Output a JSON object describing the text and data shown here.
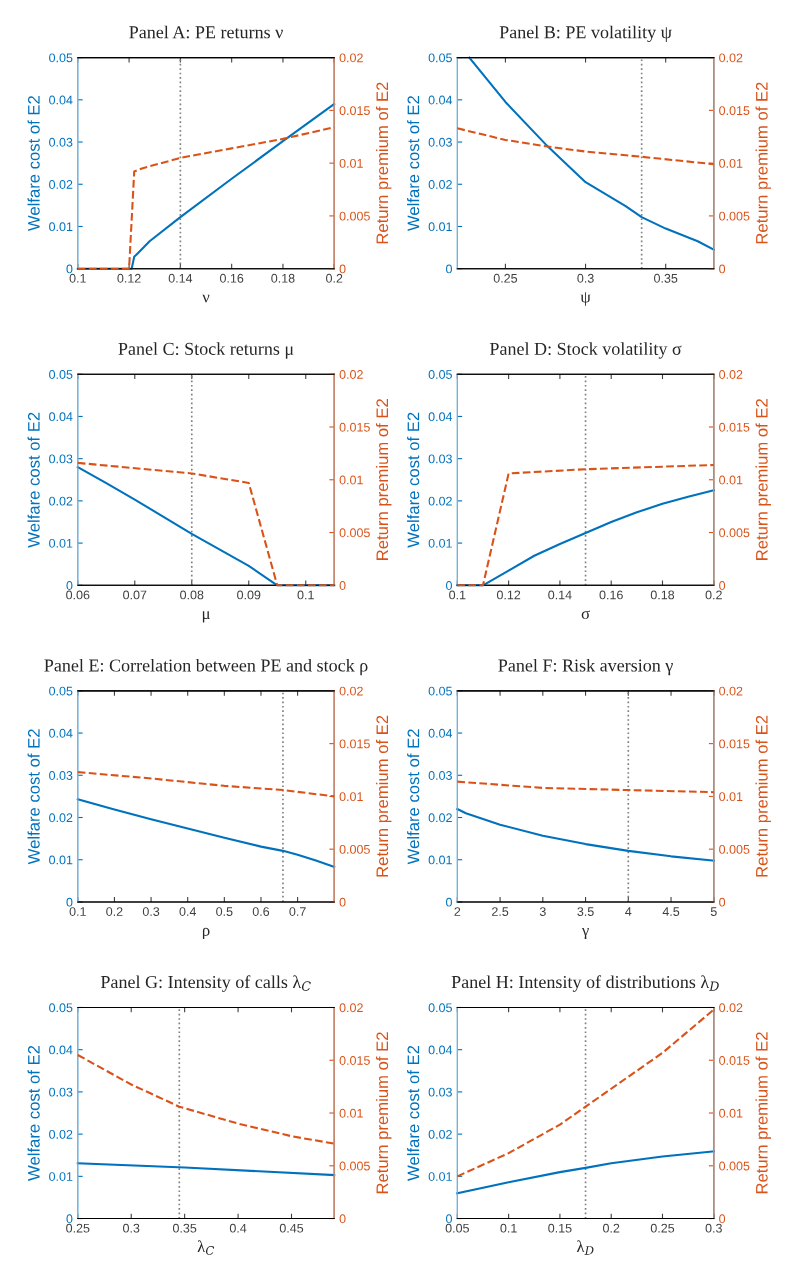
{
  "chart_data": [
    {
      "type": "line",
      "title": "Panel A: PE returns ν",
      "xlabel": "ν",
      "ylabel": "Welfare cost of E2",
      "y2label": "Return premium of E2",
      "xlim": [
        0.1,
        0.2
      ],
      "xticks": [
        0.1,
        0.12,
        0.14,
        0.16,
        0.18,
        0.2
      ],
      "ylim": [
        0,
        0.05
      ],
      "yticks": [
        0,
        0.01,
        0.02,
        0.03,
        0.04,
        0.05
      ],
      "y2lim": [
        0,
        0.02
      ],
      "y2ticks": [
        0,
        0.005,
        0.01,
        0.015,
        0.02
      ],
      "grid": false,
      "series": [
        {
          "color": "#0072bd",
          "line_style": "solid",
          "x": [
            0.1,
            0.121,
            0.122,
            0.124,
            0.128,
            0.14,
            0.16,
            0.18,
            0.2
          ],
          "values": [
            0,
            0,
            0.0028,
            0.004,
            0.0065,
            0.0122,
            0.0213,
            0.0302,
            0.039
          ]
        },
        {
          "color": "#d95319",
          "line_style": "dashed",
          "axis": "y2",
          "x": [
            0.1,
            0.12,
            0.122,
            0.125,
            0.14,
            0.16,
            0.18,
            0.2
          ],
          "values": [
            0,
            0,
            0.0092,
            0.0095,
            0.0105,
            0.0114,
            0.0123,
            0.0134
          ]
        }
      ],
      "ref_lines": [
        {
          "axis": "x",
          "value": 0.14,
          "color": "#808080",
          "line_style": "dotted"
        }
      ]
    },
    {
      "type": "line",
      "title": "Panel B: PE volatility ψ",
      "xlabel": "ψ",
      "ylabel": "Welfare cost of E2",
      "y2label": "Return premium of E2",
      "xlim": [
        0.22,
        0.38
      ],
      "xticks": [
        0.25,
        0.3,
        0.35
      ],
      "ylim": [
        0,
        0.05
      ],
      "yticks": [
        0,
        0.01,
        0.02,
        0.03,
        0.04,
        0.05
      ],
      "y2lim": [
        0,
        0.02
      ],
      "y2ticks": [
        0,
        0.005,
        0.01,
        0.015,
        0.02
      ],
      "grid": false,
      "series": [
        {
          "color": "#0072bd",
          "line_style": "solid",
          "x": [
            0.2275,
            0.25,
            0.275,
            0.3,
            0.325,
            0.335,
            0.35,
            0.37,
            0.38
          ],
          "values": [
            0.05,
            0.0395,
            0.0295,
            0.0205,
            0.0148,
            0.0122,
            0.0095,
            0.0065,
            0.0045
          ]
        },
        {
          "color": "#d95319",
          "line_style": "dashed",
          "axis": "y2",
          "x": [
            0.22,
            0.25,
            0.275,
            0.3,
            0.335,
            0.38
          ],
          "values": [
            0.0133,
            0.0122,
            0.0116,
            0.0111,
            0.0106,
            0.0099
          ]
        }
      ],
      "ref_lines": [
        {
          "axis": "x",
          "value": 0.335,
          "color": "#808080",
          "line_style": "dotted"
        }
      ]
    },
    {
      "type": "line",
      "title": "Panel C: Stock returns μ",
      "xlabel": "μ",
      "ylabel": "Welfare cost of E2",
      "y2label": "Return premium of E2",
      "xlim": [
        0.06,
        0.105
      ],
      "xticks": [
        0.06,
        0.07,
        0.08,
        0.09,
        0.1
      ],
      "ylim": [
        0,
        0.05
      ],
      "yticks": [
        0,
        0.01,
        0.02,
        0.03,
        0.04,
        0.05
      ],
      "y2lim": [
        0,
        0.02
      ],
      "y2ticks": [
        0,
        0.005,
        0.01,
        0.015,
        0.02
      ],
      "grid": false,
      "series": [
        {
          "color": "#0072bd",
          "line_style": "solid",
          "x": [
            0.06,
            0.065,
            0.07,
            0.08,
            0.09,
            0.095,
            0.105
          ],
          "values": [
            0.028,
            0.0242,
            0.0203,
            0.0122,
            0.0046,
            0,
            0
          ]
        },
        {
          "color": "#d95319",
          "line_style": "dashed",
          "axis": "y2",
          "x": [
            0.06,
            0.08,
            0.09,
            0.095,
            0.105
          ],
          "values": [
            0.0116,
            0.0106,
            0.0097,
            0,
            0
          ]
        }
      ],
      "ref_lines": [
        {
          "axis": "x",
          "value": 0.08,
          "color": "#808080",
          "line_style": "dotted"
        }
      ]
    },
    {
      "type": "line",
      "title": "Panel D: Stock volatility σ",
      "xlabel": "σ",
      "ylabel": "Welfare cost of E2",
      "y2label": "Return premium of E2",
      "xlim": [
        0.1,
        0.2
      ],
      "xticks": [
        0.1,
        0.12,
        0.14,
        0.16,
        0.18,
        0.2
      ],
      "ylim": [
        0,
        0.05
      ],
      "yticks": [
        0,
        0.01,
        0.02,
        0.03,
        0.04,
        0.05
      ],
      "y2lim": [
        0,
        0.02
      ],
      "y2ticks": [
        0,
        0.005,
        0.01,
        0.015,
        0.02
      ],
      "grid": false,
      "series": [
        {
          "color": "#0072bd",
          "line_style": "solid",
          "x": [
            0.1,
            0.11,
            0.12,
            0.13,
            0.14,
            0.15,
            0.16,
            0.17,
            0.18,
            0.19,
            0.2
          ],
          "values": [
            0,
            0,
            0.0035,
            0.007,
            0.0098,
            0.0124,
            0.015,
            0.0173,
            0.0193,
            0.021,
            0.0225
          ]
        },
        {
          "color": "#d95319",
          "line_style": "dashed",
          "axis": "y2",
          "x": [
            0.1,
            0.11,
            0.12,
            0.15,
            0.2
          ],
          "values": [
            0,
            0,
            0.0106,
            0.011,
            0.0114
          ]
        }
      ],
      "ref_lines": [
        {
          "axis": "x",
          "value": 0.15,
          "color": "#808080",
          "line_style": "dotted"
        }
      ]
    },
    {
      "type": "line",
      "title": "Panel E: Correlation between PE and stock ρ",
      "xlabel": "ρ",
      "ylabel": "Welfare cost of E2",
      "y2label": "Return premium of E2",
      "xlim": [
        0.1,
        0.8
      ],
      "xticks": [
        0.1,
        0.2,
        0.3,
        0.4,
        0.5,
        0.6,
        0.7
      ],
      "ylim": [
        0,
        0.05
      ],
      "yticks": [
        0,
        0.01,
        0.02,
        0.03,
        0.04,
        0.05
      ],
      "y2lim": [
        0,
        0.02
      ],
      "y2ticks": [
        0,
        0.005,
        0.01,
        0.015,
        0.02
      ],
      "grid": false,
      "series": [
        {
          "color": "#0072bd",
          "line_style": "solid",
          "x": [
            0.1,
            0.2,
            0.3,
            0.4,
            0.5,
            0.6,
            0.66,
            0.7,
            0.75,
            0.8
          ],
          "values": [
            0.0243,
            0.0219,
            0.0196,
            0.0174,
            0.0152,
            0.0131,
            0.0121,
            0.0112,
            0.0098,
            0.0083
          ]
        },
        {
          "color": "#d95319",
          "line_style": "dashed",
          "axis": "y2",
          "x": [
            0.1,
            0.3,
            0.5,
            0.66,
            0.8
          ],
          "values": [
            0.0123,
            0.0117,
            0.011,
            0.0106,
            0.01
          ]
        }
      ],
      "ref_lines": [
        {
          "axis": "x",
          "value": 0.66,
          "color": "#808080",
          "line_style": "dotted"
        }
      ]
    },
    {
      "type": "line",
      "title": "Panel F: Risk aversion γ",
      "xlabel": "γ",
      "ylabel": "Welfare cost of E2",
      "y2label": "Return premium of E2",
      "xlim": [
        2,
        5
      ],
      "xticks": [
        2,
        2.5,
        3,
        3.5,
        4,
        4.5,
        5
      ],
      "ylim": [
        0,
        0.05
      ],
      "yticks": [
        0,
        0.01,
        0.02,
        0.03,
        0.04,
        0.05
      ],
      "y2lim": [
        0,
        0.02
      ],
      "y2ticks": [
        0,
        0.005,
        0.01,
        0.015,
        0.02
      ],
      "grid": false,
      "series": [
        {
          "color": "#0072bd",
          "line_style": "solid",
          "x": [
            2,
            2.1,
            2.5,
            3,
            3.5,
            4,
            4.5,
            5
          ],
          "values": [
            0.022,
            0.021,
            0.0183,
            0.0157,
            0.0137,
            0.0121,
            0.0108,
            0.0098
          ]
        },
        {
          "color": "#d95319",
          "line_style": "dashed",
          "axis": "y2",
          "x": [
            2,
            3,
            4,
            5
          ],
          "values": [
            0.0114,
            0.0108,
            0.0106,
            0.0104
          ]
        }
      ],
      "ref_lines": [
        {
          "axis": "x",
          "value": 4,
          "color": "#808080",
          "line_style": "dotted"
        }
      ]
    },
    {
      "type": "line",
      "title": "Panel G: Intensity of calls λ$_{C}$",
      "xlabel": "λ$_{C}$",
      "ylabel": "Welfare cost of E2",
      "y2label": "Return premium of E2",
      "xlim": [
        0.25,
        0.49
      ],
      "xticks": [
        0.25,
        0.3,
        0.35,
        0.4,
        0.45
      ],
      "ylim": [
        0,
        0.05
      ],
      "yticks": [
        0,
        0.01,
        0.02,
        0.03,
        0.04,
        0.05
      ],
      "y2lim": [
        0,
        0.02
      ],
      "y2ticks": [
        0,
        0.005,
        0.01,
        0.015,
        0.02
      ],
      "grid": false,
      "series": [
        {
          "color": "#0072bd",
          "line_style": "solid",
          "x": [
            0.25,
            0.35,
            0.49
          ],
          "values": [
            0.0131,
            0.0121,
            0.0103
          ]
        },
        {
          "color": "#d95319",
          "line_style": "dashed",
          "axis": "y2",
          "x": [
            0.25,
            0.3,
            0.345,
            0.4,
            0.45,
            0.49
          ],
          "values": [
            0.0155,
            0.0127,
            0.0106,
            0.009,
            0.0078,
            0.0071
          ]
        }
      ],
      "ref_lines": [
        {
          "axis": "x",
          "value": 0.345,
          "color": "#808080",
          "line_style": "dotted"
        }
      ]
    },
    {
      "type": "line",
      "title": "Panel H: Intensity of distributions λ$_{D}$",
      "xlabel": "λ$_{D}$",
      "ylabel": "Welfare cost of E2",
      "y2label": "Return premium of E2",
      "xlim": [
        0.05,
        0.3
      ],
      "xticks": [
        0.05,
        0.1,
        0.15,
        0.2,
        0.25,
        0.3
      ],
      "ylim": [
        0,
        0.05
      ],
      "yticks": [
        0,
        0.01,
        0.02,
        0.03,
        0.04,
        0.05
      ],
      "y2lim": [
        0,
        0.02
      ],
      "y2ticks": [
        0,
        0.005,
        0.01,
        0.015,
        0.02
      ],
      "grid": false,
      "series": [
        {
          "color": "#0072bd",
          "line_style": "solid",
          "x": [
            0.05,
            0.1,
            0.15,
            0.175,
            0.2,
            0.25,
            0.3
          ],
          "values": [
            0.006,
            0.0086,
            0.011,
            0.012,
            0.0131,
            0.0147,
            0.0159
          ]
        },
        {
          "color": "#d95319",
          "line_style": "dashed",
          "axis": "y2",
          "x": [
            0.05,
            0.1,
            0.15,
            0.175,
            0.2,
            0.25,
            0.3
          ],
          "values": [
            0.004,
            0.0062,
            0.0089,
            0.0106,
            0.0123,
            0.0157,
            0.0198
          ]
        }
      ],
      "ref_lines": [
        {
          "axis": "x",
          "value": 0.175,
          "color": "#808080",
          "line_style": "dotted"
        }
      ]
    }
  ]
}
